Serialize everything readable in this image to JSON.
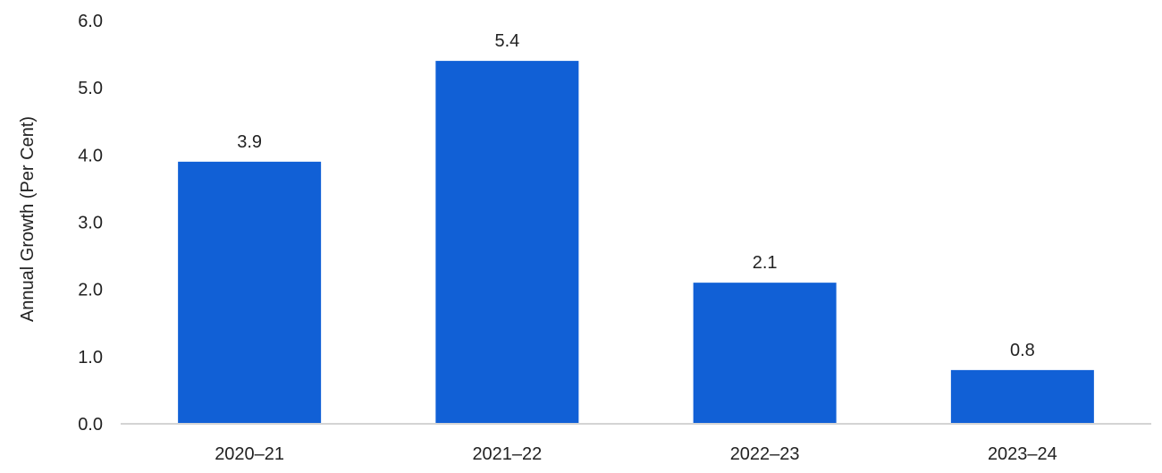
{
  "colors": {
    "bar": "#1160D6",
    "axis": "#D4D4D4",
    "text": "#222222"
  },
  "chart_data": {
    "type": "bar",
    "categories": [
      "2020–21",
      "2021–22",
      "2022–23",
      "2023–24"
    ],
    "values": [
      3.9,
      5.4,
      2.1,
      0.8
    ],
    "data_labels": [
      "3.9",
      "5.4",
      "2.1",
      "0.8"
    ],
    "ylabel": "Annual Growth  (Per Cent)",
    "xlabel": "",
    "ylim": [
      0,
      6
    ],
    "yticks": [
      0,
      1,
      2,
      3,
      4,
      5,
      6
    ],
    "ytick_labels": [
      "0.0",
      "1.0",
      "2.0",
      "3.0",
      "4.0",
      "5.0",
      "6.0"
    ],
    "grid": false,
    "legend": "none"
  }
}
